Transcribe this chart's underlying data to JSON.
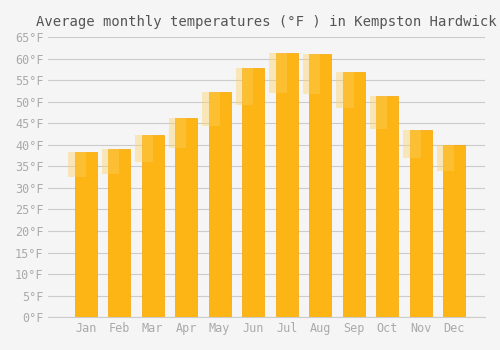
{
  "title": "Average monthly temperatures (°F ) in Kempston Hardwick",
  "months": [
    "Jan",
    "Feb",
    "Mar",
    "Apr",
    "May",
    "Jun",
    "Jul",
    "Aug",
    "Sep",
    "Oct",
    "Nov",
    "Dec"
  ],
  "values": [
    38.3,
    39.0,
    42.3,
    46.2,
    52.2,
    57.9,
    61.2,
    61.0,
    57.0,
    51.3,
    43.5,
    40.0
  ],
  "bar_color_main": "#FDB515",
  "bar_color_edge": "#F5A400",
  "background_color": "#F5F5F5",
  "grid_color": "#CCCCCC",
  "text_color": "#AAAAAA",
  "title_color": "#555555",
  "ylim": [
    0,
    65
  ],
  "yticks": [
    0,
    5,
    10,
    15,
    20,
    25,
    30,
    35,
    40,
    45,
    50,
    55,
    60,
    65
  ],
  "title_fontsize": 10,
  "tick_fontsize": 8.5
}
